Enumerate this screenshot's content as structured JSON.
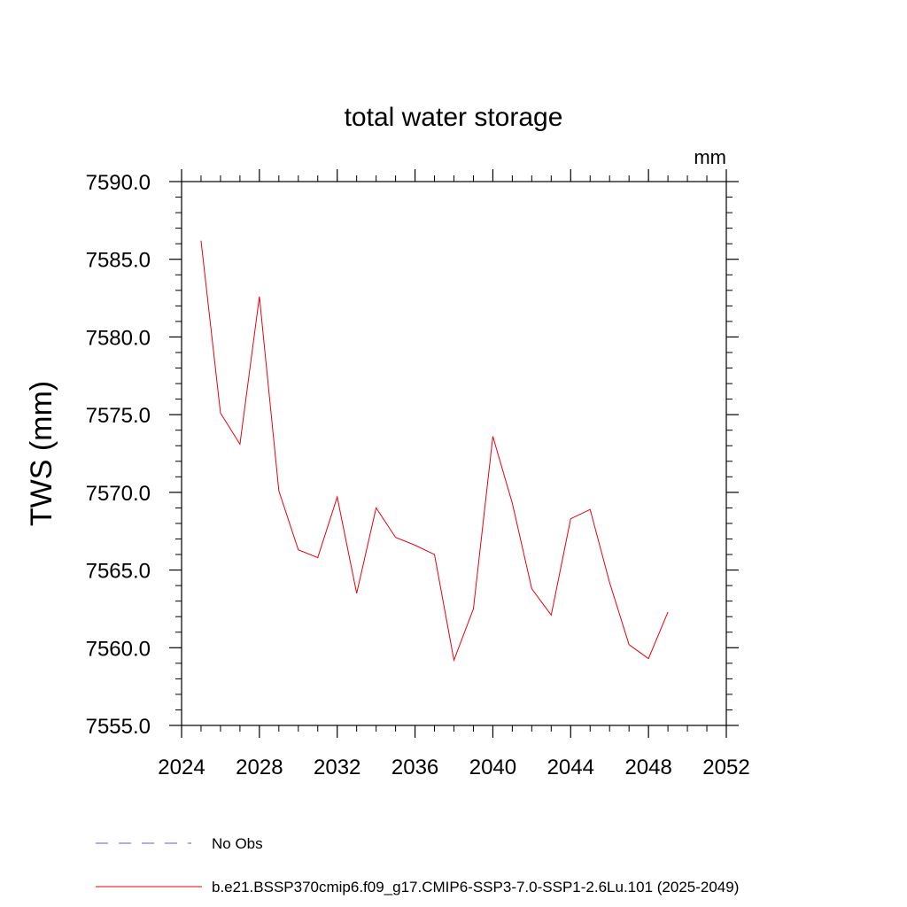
{
  "chart_data": {
    "type": "line",
    "title": "total water storage",
    "units": "mm",
    "ylabel": "TWS  (mm)",
    "xlabel": "",
    "xlim": [
      2024,
      2052
    ],
    "ylim": [
      7555.0,
      7590.0
    ],
    "x_ticks": [
      "2024",
      "2028",
      "2032",
      "2036",
      "2040",
      "2044",
      "2048",
      "2052"
    ],
    "y_ticks": [
      "7555.0",
      "7560.0",
      "7565.0",
      "7570.0",
      "7575.0",
      "7580.0",
      "7585.0",
      "7590.0"
    ],
    "series": [
      {
        "name": "b.e21.BSSP370cmip6.f09_g17.CMIP6-SSP3-7.0-SSP1-2.6Lu.101 (2025-2049)",
        "color": "#e8000b",
        "x": [
          2025,
          2026,
          2027,
          2028,
          2029,
          2030,
          2031,
          2032,
          2033,
          2034,
          2035,
          2036,
          2037,
          2038,
          2039,
          2040,
          2041,
          2042,
          2043,
          2044,
          2045,
          2046,
          2047,
          2048,
          2049
        ],
        "values": [
          7586.2,
          7575.1,
          7573.1,
          7582.6,
          7570.1,
          7566.3,
          7565.8,
          7569.7,
          7563.5,
          7569.0,
          7567.1,
          7566.6,
          7566.0,
          7559.2,
          7562.5,
          7573.6,
          7569.3,
          7563.8,
          7562.1,
          7568.3,
          7568.9,
          7564.2,
          7560.2,
          7559.3,
          7562.3
        ]
      }
    ],
    "legend": [
      {
        "label": "No Obs",
        "style": "dashed",
        "color": "#6a5acd"
      },
      {
        "label": "b.e21.BSSP370cmip6.f09_g17.CMIP6-SSP3-7.0-SSP1-2.6Lu.101 (2025-2049)",
        "style": "solid",
        "color": "#e8000b"
      }
    ],
    "legend_position": "bottom-left",
    "grid": false
  }
}
